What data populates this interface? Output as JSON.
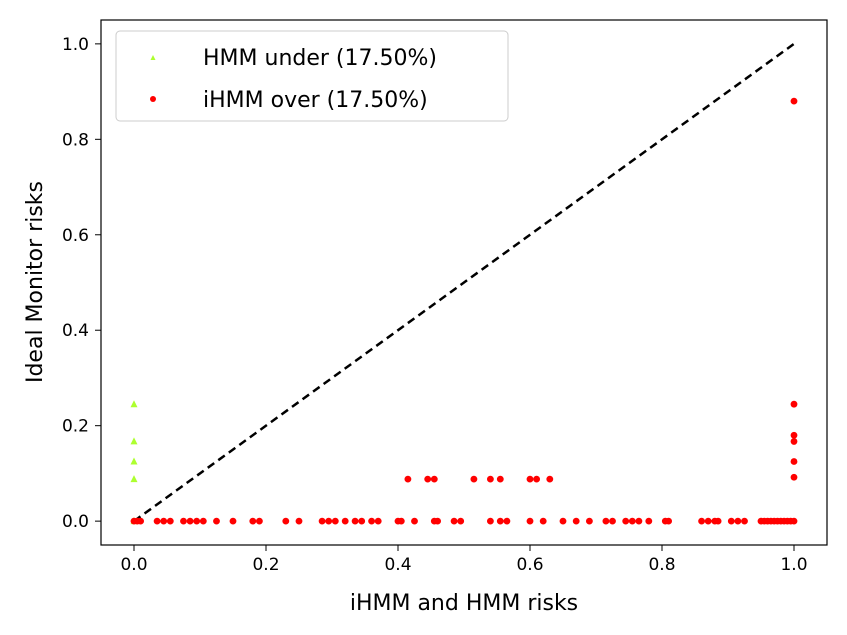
{
  "chart_data": {
    "type": "scatter",
    "xlabel": "iHMM and HMM risks",
    "ylabel": "Ideal Monitor risks",
    "xlim": [
      -0.05,
      1.05
    ],
    "ylim": [
      -0.05,
      1.05
    ],
    "xticks": [
      "0.0",
      "0.2",
      "0.4",
      "0.6",
      "0.8",
      "1.0"
    ],
    "yticks": [
      "0.0",
      "0.2",
      "0.4",
      "0.6",
      "0.8",
      "1.0"
    ],
    "legend_position": "top-left",
    "reference_line": {
      "x": [
        0,
        1
      ],
      "y": [
        0,
        1
      ],
      "style": "dashed",
      "color": "#000000"
    },
    "series": [
      {
        "name": "HMM under (17.50%)",
        "marker": "triangle",
        "color": "#adff2f",
        "points": [
          [
            0,
            0.245
          ],
          [
            0,
            0.167
          ],
          [
            0,
            0.125
          ],
          [
            0,
            0.088
          ],
          [
            0,
            0.0
          ]
        ]
      },
      {
        "name": "iHMM over (17.50%)",
        "marker": "circle",
        "color": "#ff0000",
        "points": [
          [
            0.0,
            0.0
          ],
          [
            0.005,
            0.0
          ],
          [
            0.01,
            0.0
          ],
          [
            0.035,
            0.0
          ],
          [
            0.045,
            0.0
          ],
          [
            0.055,
            0.0
          ],
          [
            0.075,
            0.0
          ],
          [
            0.085,
            0.0
          ],
          [
            0.095,
            0.0
          ],
          [
            0.105,
            0.0
          ],
          [
            0.125,
            0.0
          ],
          [
            0.15,
            0.0
          ],
          [
            0.18,
            0.0
          ],
          [
            0.19,
            0.0
          ],
          [
            0.23,
            0.0
          ],
          [
            0.25,
            0.0
          ],
          [
            0.285,
            0.0
          ],
          [
            0.295,
            0.0
          ],
          [
            0.305,
            0.0
          ],
          [
            0.32,
            0.0
          ],
          [
            0.335,
            0.0
          ],
          [
            0.345,
            0.0
          ],
          [
            0.36,
            0.0
          ],
          [
            0.37,
            0.0
          ],
          [
            0.4,
            0.0
          ],
          [
            0.405,
            0.0
          ],
          [
            0.425,
            0.0
          ],
          [
            0.455,
            0.0
          ],
          [
            0.46,
            0.0
          ],
          [
            0.485,
            0.0
          ],
          [
            0.495,
            0.0
          ],
          [
            0.54,
            0.0
          ],
          [
            0.555,
            0.0
          ],
          [
            0.565,
            0.0
          ],
          [
            0.6,
            0.0
          ],
          [
            0.62,
            0.0
          ],
          [
            0.65,
            0.0
          ],
          [
            0.67,
            0.0
          ],
          [
            0.69,
            0.0
          ],
          [
            0.715,
            0.0
          ],
          [
            0.725,
            0.0
          ],
          [
            0.745,
            0.0
          ],
          [
            0.755,
            0.0
          ],
          [
            0.765,
            0.0
          ],
          [
            0.78,
            0.0
          ],
          [
            0.805,
            0.0
          ],
          [
            0.81,
            0.0
          ],
          [
            0.86,
            0.0
          ],
          [
            0.87,
            0.0
          ],
          [
            0.88,
            0.0
          ],
          [
            0.885,
            0.0
          ],
          [
            0.905,
            0.0
          ],
          [
            0.915,
            0.0
          ],
          [
            0.925,
            0.0
          ],
          [
            0.95,
            0.0
          ],
          [
            0.955,
            0.0
          ],
          [
            0.96,
            0.0
          ],
          [
            0.965,
            0.0
          ],
          [
            0.97,
            0.0
          ],
          [
            0.975,
            0.0
          ],
          [
            0.98,
            0.0
          ],
          [
            0.985,
            0.0
          ],
          [
            0.99,
            0.0
          ],
          [
            0.995,
            0.0
          ],
          [
            1.0,
            0.0
          ],
          [
            0.415,
            0.088
          ],
          [
            0.445,
            0.088
          ],
          [
            0.455,
            0.088
          ],
          [
            0.515,
            0.088
          ],
          [
            0.54,
            0.088
          ],
          [
            0.555,
            0.088
          ],
          [
            0.6,
            0.088
          ],
          [
            0.61,
            0.088
          ],
          [
            0.63,
            0.088
          ],
          [
            1.0,
            0.88
          ],
          [
            1.0,
            0.245
          ],
          [
            1.0,
            0.18
          ],
          [
            1.0,
            0.167
          ],
          [
            1.0,
            0.125
          ],
          [
            1.0,
            0.092
          ]
        ]
      }
    ]
  }
}
